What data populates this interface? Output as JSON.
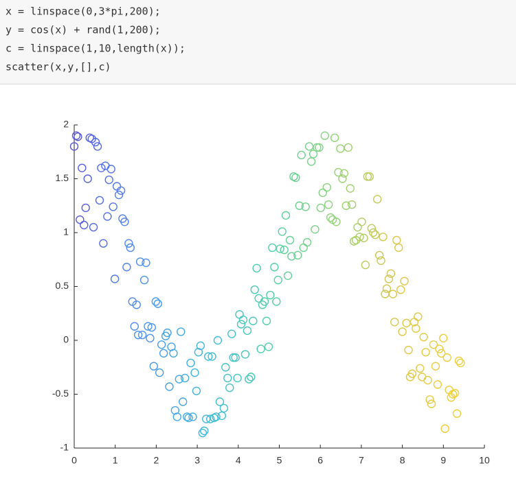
{
  "code": {
    "lines": [
      "x = linspace(0,3*pi,200);",
      "y = cos(x) + rand(1,200);",
      "c = linspace(1,10,length(x));",
      "scatter(x,y,[],c)"
    ]
  },
  "chart_data": {
    "type": "scatter",
    "xlim": [
      0,
      10
    ],
    "xticks": [
      0,
      1,
      2,
      3,
      4,
      5,
      6,
      7,
      8,
      9,
      10
    ],
    "ylim": [
      -1,
      2
    ],
    "yticks": [
      -1,
      -0.5,
      0,
      0.5,
      1,
      1.5,
      2
    ],
    "colormap": [
      "#5a55dc",
      "#4f8ff0",
      "#3fb8e0",
      "#4fd0a8",
      "#8ed47a",
      "#dcc64a",
      "#f2d03c"
    ],
    "x": [
      0.0,
      0.05,
      0.09,
      0.14,
      0.19,
      0.24,
      0.28,
      0.33,
      0.38,
      0.43,
      0.47,
      0.52,
      0.57,
      0.62,
      0.66,
      0.71,
      0.76,
      0.81,
      0.85,
      0.9,
      0.95,
      0.99,
      1.04,
      1.09,
      1.14,
      1.18,
      1.23,
      1.28,
      1.33,
      1.37,
      1.42,
      1.47,
      1.52,
      1.56,
      1.61,
      1.66,
      1.71,
      1.75,
      1.8,
      1.85,
      1.89,
      1.94,
      1.99,
      2.04,
      2.08,
      2.13,
      2.18,
      2.23,
      2.27,
      2.32,
      2.37,
      2.42,
      2.46,
      2.51,
      2.56,
      2.6,
      2.65,
      2.7,
      2.75,
      2.79,
      2.84,
      2.89,
      2.94,
      2.98,
      3.03,
      3.08,
      3.13,
      3.17,
      3.22,
      3.27,
      3.32,
      3.36,
      3.41,
      3.46,
      3.5,
      3.55,
      3.6,
      3.65,
      3.69,
      3.74,
      3.79,
      3.84,
      3.88,
      3.93,
      3.98,
      4.03,
      4.07,
      4.12,
      4.17,
      4.22,
      4.26,
      4.31,
      4.36,
      4.4,
      4.45,
      4.5,
      4.55,
      4.59,
      4.64,
      4.69,
      4.74,
      4.78,
      4.83,
      4.88,
      4.93,
      4.97,
      5.02,
      5.07,
      5.12,
      5.16,
      5.21,
      5.26,
      5.3,
      5.35,
      5.4,
      5.45,
      5.49,
      5.54,
      5.59,
      5.64,
      5.68,
      5.73,
      5.78,
      5.83,
      5.87,
      5.92,
      5.97,
      6.01,
      6.06,
      6.11,
      6.16,
      6.2,
      6.25,
      6.3,
      6.35,
      6.39,
      6.44,
      6.49,
      6.54,
      6.58,
      6.63,
      6.68,
      6.73,
      6.77,
      6.82,
      6.87,
      6.91,
      6.96,
      7.01,
      7.06,
      7.1,
      7.15,
      7.2,
      7.25,
      7.29,
      7.34,
      7.39,
      7.44,
      7.48,
      7.53,
      7.58,
      7.62,
      7.67,
      7.72,
      7.77,
      7.81,
      7.86,
      7.91,
      7.96,
      8.0,
      8.05,
      8.1,
      8.15,
      8.19,
      8.24,
      8.29,
      8.33,
      8.38,
      8.43,
      8.48,
      8.52,
      8.57,
      8.62,
      8.67,
      8.71,
      8.76,
      8.81,
      8.86,
      8.9,
      8.95,
      9.0,
      9.04,
      9.09,
      9.14,
      9.19,
      9.23,
      9.28,
      9.33,
      9.38,
      9.42
    ],
    "values": [
      1.8,
      1.9,
      1.89,
      1.12,
      1.6,
      1.07,
      1.23,
      1.5,
      1.88,
      1.87,
      1.05,
      1.84,
      1.8,
      1.3,
      1.6,
      0.9,
      1.62,
      1.15,
      1.49,
      1.59,
      1.24,
      0.57,
      1.43,
      1.35,
      1.39,
      1.13,
      1.1,
      0.68,
      0.9,
      0.86,
      0.36,
      0.13,
      0.33,
      0.05,
      0.73,
      0.05,
      0.56,
      0.72,
      0.13,
      0.02,
      0.12,
      -0.24,
      0.36,
      0.34,
      -0.3,
      -0.04,
      -0.12,
      0.04,
      0.07,
      -0.43,
      -0.06,
      -0.12,
      -0.65,
      -0.71,
      -0.36,
      0.08,
      -0.57,
      -0.35,
      -0.71,
      -0.72,
      -0.21,
      -0.71,
      -0.3,
      -0.47,
      -0.11,
      -0.05,
      -0.86,
      -0.84,
      -0.73,
      -0.15,
      -0.73,
      -0.15,
      -0.72,
      -0.71,
      0,
      -0.57,
      -0.7,
      -0.63,
      -0.25,
      -0.35,
      -0.44,
      0.06,
      -0.16,
      -0.16,
      -0.35,
      0.24,
      0.15,
      0.19,
      -0.13,
      0.09,
      -0.36,
      -0.34,
      0.18,
      0.47,
      0.67,
      0.39,
      -0.08,
      0.33,
      0.36,
      0.18,
      -0.06,
      0.42,
      0.86,
      0.68,
      0.36,
      0.56,
      0.85,
      1.01,
      0.84,
      1.16,
      0.6,
      0.93,
      0.78,
      1.52,
      1.51,
      0.79,
      1.25,
      1.72,
      0.86,
      1.24,
      0.91,
      1.8,
      1.66,
      1.73,
      1.03,
      1.79,
      1.79,
      1.23,
      1.37,
      1.9,
      1.42,
      1.26,
      1.14,
      1.12,
      1.88,
      1.1,
      1.56,
      1.78,
      1.5,
      1.55,
      1.25,
      1.79,
      1.41,
      1.26,
      0.92,
      0.93,
      1.05,
      0.96,
      1.1,
      0.95,
      0.7,
      1.52,
      1.52,
      1.04,
      1,
      0.98,
      1.31,
      0.79,
      0.74,
      0.96,
      0.43,
      0.48,
      0.57,
      0.62,
      0.43,
      0.17,
      0.93,
      0.86,
      0.47,
      0.08,
      0.55,
      0.16,
      -0.09,
      -0.34,
      -0.31,
      0.17,
      0.11,
      0.22,
      -0.26,
      -0.34,
      0.03,
      -0.11,
      -0.37,
      -0.55,
      -0.59,
      -0.04,
      -0.24,
      -0.41,
      -0.08,
      -0.12,
      0.02,
      -0.82,
      -0.16,
      -0.46,
      -0.53,
      -0.5,
      -0.49,
      -0.68,
      -0.19,
      -0.21
    ]
  }
}
